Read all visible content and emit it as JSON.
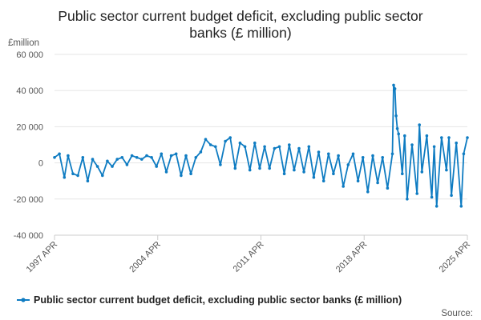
{
  "chart_data": {
    "type": "line",
    "title_lines": [
      "Public sector current budget deficit, excluding public sector",
      "banks (£ million)"
    ],
    "ylabel": "£million",
    "ylim": [
      -40000,
      60000
    ],
    "yticks": [
      60000,
      40000,
      20000,
      0,
      -20000,
      -40000
    ],
    "ytick_labels": [
      "60 000",
      "40 000",
      "20 000",
      "0",
      "-20 000",
      "-40 000"
    ],
    "xlim": [
      "1997-04",
      "2025-04"
    ],
    "xticks": [
      "1997-04",
      "2004-04",
      "2011-04",
      "2018-04",
      "2025-04"
    ],
    "xtick_labels": [
      "1997 APR",
      "2004 APR",
      "2011 APR",
      "2018 APR",
      "2025 APR"
    ],
    "grid": true,
    "legend_position": "bottom",
    "series": [
      {
        "name": "Public sector current budget deficit, excluding public sector banks (£ million)",
        "color": "#0f7cc2",
        "x": [
          "1997-04",
          "1997-08",
          "1997-12",
          "1998-03",
          "1998-07",
          "1998-11",
          "1999-03",
          "1999-07",
          "1999-11",
          "2000-03",
          "2000-07",
          "2000-11",
          "2001-03",
          "2001-07",
          "2001-11",
          "2002-03",
          "2002-07",
          "2002-11",
          "2003-03",
          "2003-07",
          "2003-11",
          "2004-03",
          "2004-07",
          "2004-11",
          "2005-03",
          "2005-07",
          "2005-11",
          "2006-03",
          "2006-07",
          "2006-11",
          "2007-03",
          "2007-07",
          "2007-11",
          "2008-03",
          "2008-07",
          "2008-11",
          "2009-03",
          "2009-07",
          "2009-11",
          "2010-03",
          "2010-07",
          "2010-11",
          "2011-03",
          "2011-07",
          "2011-11",
          "2012-03",
          "2012-07",
          "2012-11",
          "2013-03",
          "2013-07",
          "2013-11",
          "2014-03",
          "2014-07",
          "2014-11",
          "2015-03",
          "2015-07",
          "2015-11",
          "2016-03",
          "2016-07",
          "2016-11",
          "2017-03",
          "2017-07",
          "2017-11",
          "2018-03",
          "2018-07",
          "2018-11",
          "2019-03",
          "2019-07",
          "2019-11",
          "2020-03",
          "2020-04",
          "2020-05",
          "2020-06",
          "2020-07",
          "2020-08",
          "2020-11",
          "2021-01",
          "2021-03",
          "2021-07",
          "2021-11",
          "2022-01",
          "2022-03",
          "2022-07",
          "2022-11",
          "2023-01",
          "2023-03",
          "2023-07",
          "2023-11",
          "2024-01",
          "2024-03",
          "2024-07",
          "2024-11",
          "2025-01",
          "2025-04"
        ],
        "values": [
          3000,
          5000,
          -8000,
          4000,
          -6000,
          -7000,
          3000,
          -10000,
          2000,
          -2000,
          -7000,
          1000,
          -2000,
          2000,
          3000,
          -1000,
          4000,
          3000,
          2000,
          4000,
          3000,
          -2000,
          5000,
          -5000,
          4000,
          5000,
          -7000,
          4000,
          -6000,
          3000,
          6000,
          13000,
          10000,
          9000,
          -1000,
          12000,
          14000,
          -3000,
          11000,
          9000,
          -4000,
          11000,
          -3000,
          9000,
          -3000,
          8000,
          9000,
          -6000,
          10000,
          -4000,
          8000,
          -5000,
          9000,
          -8000,
          6000,
          -10000,
          5000,
          -6000,
          4000,
          -13000,
          -1000,
          5000,
          -10000,
          3000,
          -16000,
          4000,
          -11000,
          3000,
          -14000,
          5000,
          43000,
          41000,
          26000,
          19000,
          16000,
          -6000,
          15000,
          -20000,
          10000,
          -17000,
          21000,
          -5000,
          15000,
          -19000,
          9000,
          -24000,
          14000,
          -4000,
          14000,
          -18000,
          11000,
          -24000,
          5000,
          14000
        ]
      }
    ],
    "legend_label": "Public sector current budget deficit, excluding public sector banks (£ million)",
    "source_label": "Source:"
  }
}
